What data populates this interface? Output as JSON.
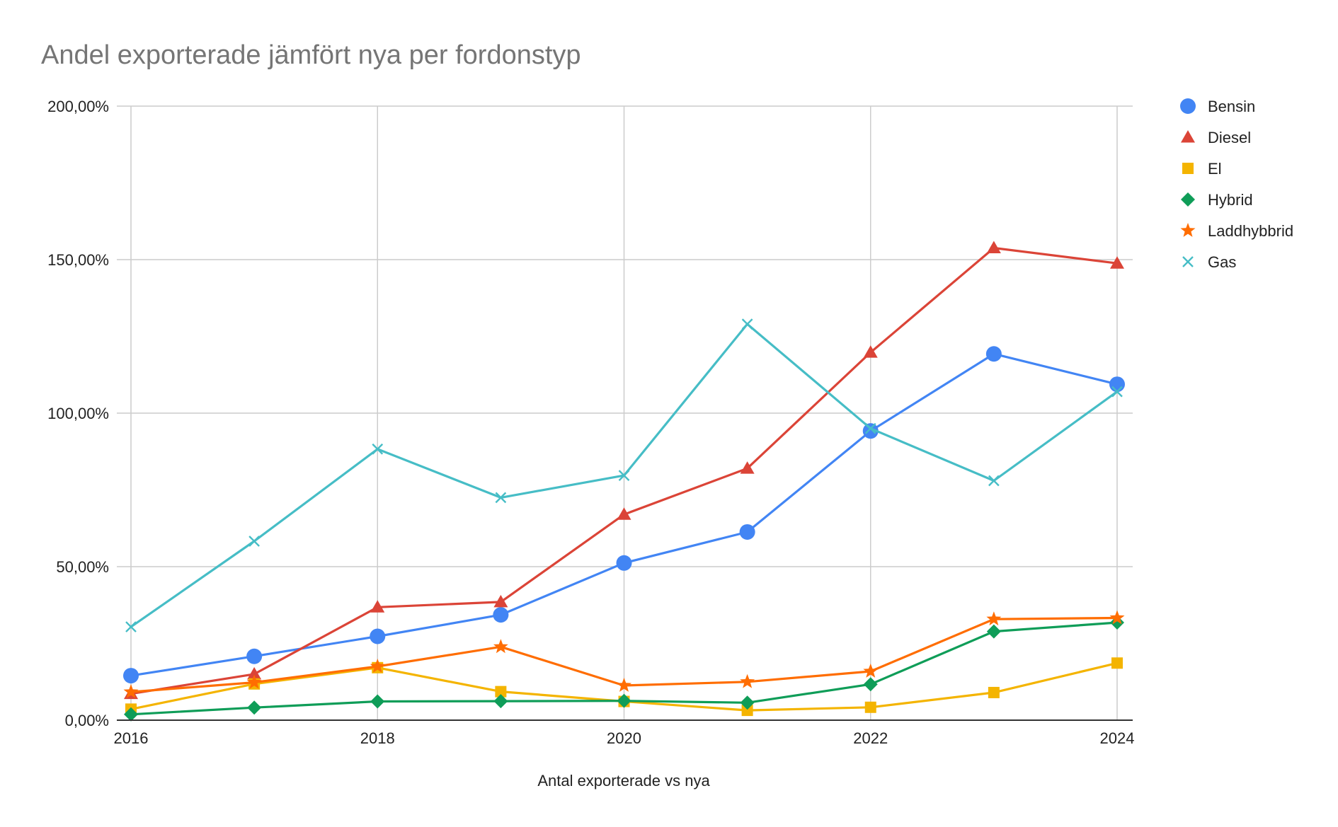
{
  "chart_data": {
    "type": "line",
    "title": "Andel exporterade jämfört nya per fordonstyp",
    "xlabel": "Antal exporterade vs nya",
    "ylabel": "",
    "x": [
      2016,
      2017,
      2018,
      2019,
      2020,
      2021,
      2022,
      2023,
      2024
    ],
    "x_tick_labels": [
      "2016",
      "2018",
      "2020",
      "2022",
      "2024"
    ],
    "x_ticks": [
      2016,
      2018,
      2020,
      2022,
      2024
    ],
    "xlim": [
      2016,
      2024
    ],
    "y_ticks": [
      0,
      50,
      100,
      150,
      200
    ],
    "y_tick_labels": [
      "0,00%",
      "50,00%",
      "100,00%",
      "150,00%",
      "200,00%"
    ],
    "ylim": [
      0,
      200
    ],
    "grid": true,
    "legend_position": "right",
    "series": [
      {
        "name": "Bensin",
        "color": "#4285f4",
        "marker": "circle",
        "values": [
          14.5,
          20.8,
          27.3,
          34.3,
          51.2,
          61.3,
          94.2,
          119.3,
          109.4
        ]
      },
      {
        "name": "Diesel",
        "color": "#db4437",
        "marker": "triangle",
        "values": [
          8.6,
          15.0,
          36.8,
          38.5,
          67.0,
          82.0,
          119.8,
          153.8,
          148.8
        ]
      },
      {
        "name": "El",
        "color": "#f4b400",
        "marker": "square",
        "values": [
          3.6,
          11.8,
          17.1,
          9.3,
          6.1,
          3.2,
          4.2,
          9.0,
          18.6
        ]
      },
      {
        "name": "Hybrid",
        "color": "#0f9d58",
        "marker": "diamond",
        "values": [
          1.9,
          4.1,
          6.1,
          6.2,
          6.3,
          5.7,
          11.7,
          28.9,
          31.8
        ]
      },
      {
        "name": "Laddhybbrid",
        "color": "#ff6d01",
        "marker": "star",
        "values": [
          9.2,
          12.3,
          17.5,
          23.9,
          11.3,
          12.5,
          15.9,
          32.9,
          33.3
        ]
      },
      {
        "name": "Gas",
        "color": "#46bdc6",
        "marker": "x",
        "values": [
          30.4,
          58.3,
          88.3,
          72.5,
          79.7,
          129.0,
          95.0,
          78.0,
          107.0
        ]
      }
    ]
  }
}
